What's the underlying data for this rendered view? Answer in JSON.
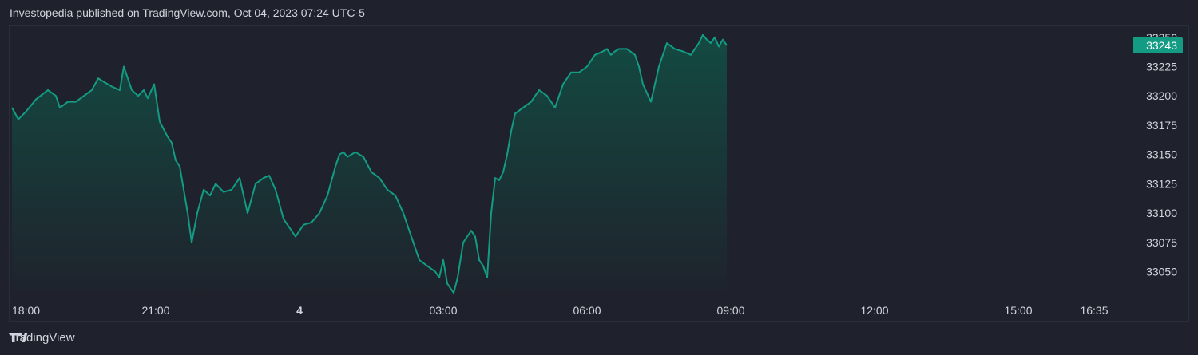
{
  "header": {
    "published_text": "Investopedia published on TradingView.com, Oct 04, 2023 07:24 UTC-5"
  },
  "footer": {
    "brand": "TradingView",
    "logo_icon": "tradingview-logo-icon"
  },
  "colors": {
    "line": "#139b83",
    "fill_top": "#134a42",
    "fill_bottom": "#1f222c",
    "badge": "#139b83",
    "axis_text": "#d1d4dc"
  },
  "chart_data": {
    "type": "area",
    "title": "",
    "xlabel": "",
    "ylabel": "",
    "x_ticks": [
      {
        "label": "18:00",
        "t": 0,
        "bold": false
      },
      {
        "label": "21:00",
        "t": 180,
        "bold": false
      },
      {
        "label": "4",
        "t": 360,
        "bold": true
      },
      {
        "label": "03:00",
        "t": 540,
        "bold": false
      },
      {
        "label": "06:00",
        "t": 720,
        "bold": false
      },
      {
        "label": "09:00",
        "t": 900,
        "bold": false
      },
      {
        "label": "12:00",
        "t": 1080,
        "bold": false
      },
      {
        "label": "15:00",
        "t": 1260,
        "bold": false
      },
      {
        "label": "16:35",
        "t": 1355,
        "bold": false
      }
    ],
    "xlim": [
      -3,
      1425
    ],
    "y_ticks": [
      33050,
      33075,
      33100,
      33125,
      33150,
      33175,
      33200,
      33225,
      33250
    ],
    "ylim": [
      33030,
      33258
    ],
    "last_value_label": "33243",
    "last_value": 33243,
    "series": [
      {
        "t": [
          0,
          8,
          18,
          30,
          45,
          55,
          60,
          70,
          80,
          90,
          100,
          108,
          115,
          125,
          135,
          140,
          145,
          150,
          158,
          165,
          170,
          178,
          185,
          195,
          200,
          205,
          210,
          220,
          225,
          232,
          240,
          248,
          255,
          265,
          275,
          285,
          290,
          295,
          305,
          315,
          322,
          330,
          340,
          345,
          355,
          365,
          375,
          385,
          395,
          405,
          410,
          415,
          420,
          430,
          440,
          450,
          460,
          470,
          480,
          490,
          500,
          505,
          510,
          520,
          530,
          535,
          540,
          545,
          550,
          553,
          558,
          565,
          570,
          575,
          580,
          585,
          590,
          595,
          600,
          605,
          610,
          615,
          620,
          625,
          630,
          640,
          650,
          660,
          670,
          675,
          680,
          690,
          700,
          710,
          720,
          730,
          740,
          745,
          750,
          755,
          760,
          770,
          780,
          785,
          790,
          800,
          810,
          820,
          830,
          840,
          850,
          860,
          865,
          870,
          875,
          880,
          885,
          890,
          895
        ],
        "values": [
          33190,
          33180,
          33187,
          33197,
          33205,
          33200,
          33190,
          33195,
          33195,
          33200,
          33205,
          33215,
          33212,
          33208,
          33205,
          33225,
          33215,
          33205,
          33200,
          33205,
          33198,
          33210,
          33178,
          33165,
          33160,
          33145,
          33140,
          33100,
          33075,
          33100,
          33120,
          33115,
          33125,
          33118,
          33120,
          33130,
          33115,
          33100,
          33125,
          33130,
          33132,
          33120,
          33095,
          33090,
          33080,
          33090,
          33092,
          33100,
          33115,
          33140,
          33150,
          33152,
          33148,
          33152,
          33148,
          33135,
          33130,
          33120,
          33115,
          33100,
          33080,
          33070,
          33060,
          33055,
          33050,
          33045,
          33060,
          33040,
          33035,
          33032,
          33045,
          33075,
          33080,
          33085,
          33080,
          33060,
          33055,
          33045,
          33100,
          33130,
          33128,
          33135,
          33150,
          33170,
          33185,
          33190,
          33195,
          33205,
          33200,
          33195,
          33190,
          33210,
          33220,
          33220,
          33225,
          33235,
          33238,
          33240,
          33235,
          33238,
          33240,
          33240,
          33235,
          33225,
          33210,
          33195,
          33225,
          33245,
          33240,
          33238,
          33235,
          33245,
          33252,
          33248,
          33245,
          33250,
          33242,
          33248,
          33243
        ]
      }
    ]
  }
}
